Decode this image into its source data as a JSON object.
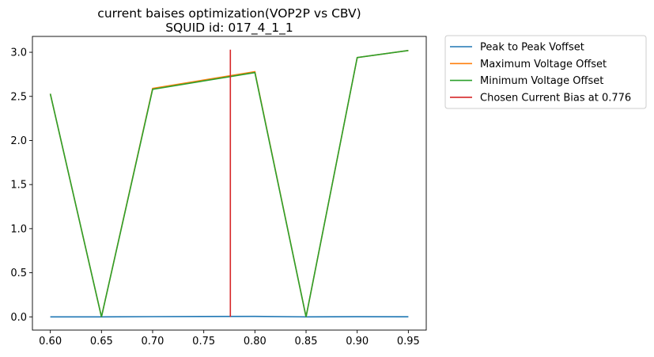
{
  "chart_data": {
    "type": "line",
    "title": "current baises optimization(VOP2P vs CBV)",
    "subtitle": "SQUID id: 017_4_1_1",
    "xlabel": "",
    "ylabel": "",
    "xlim": [
      0.5825,
      0.9675
    ],
    "ylim": [
      -0.15,
      3.18
    ],
    "xticks": [
      0.6,
      0.65,
      0.7,
      0.75,
      0.8,
      0.85,
      0.9,
      0.95
    ],
    "xtick_labels": [
      "0.60",
      "0.65",
      "0.70",
      "0.75",
      "0.80",
      "0.85",
      "0.90",
      "0.95"
    ],
    "yticks": [
      0.0,
      0.5,
      1.0,
      1.5,
      2.0,
      2.5,
      3.0
    ],
    "ytick_labels": [
      "0.0",
      "0.5",
      "1.0",
      "1.5",
      "2.0",
      "2.5",
      "3.0"
    ],
    "grid": false,
    "legend_position": "outside-top-right",
    "x": [
      0.6,
      0.65,
      0.7,
      0.8,
      0.85,
      0.9,
      0.95
    ],
    "series": [
      {
        "name": "Peak to Peak Voffset",
        "color": "#1f77b4",
        "values": [
          0.0,
          0.0,
          0.003,
          0.005,
          0.0,
          0.002,
          0.001
        ]
      },
      {
        "name": "Maximum Voltage Offset",
        "color": "#ff7f0e",
        "values": [
          2.53,
          0.0,
          2.59,
          2.78,
          0.0,
          2.94,
          3.02
        ]
      },
      {
        "name": "Minimum Voltage Offset",
        "color": "#2ca02c",
        "values": [
          2.53,
          0.0,
          2.58,
          2.77,
          0.0,
          2.94,
          3.02
        ]
      }
    ],
    "vline": {
      "name": "Chosen Current Bias at 0.776",
      "color": "#d62728",
      "x": 0.776,
      "y0": 0.0,
      "y1": 3.03
    }
  }
}
